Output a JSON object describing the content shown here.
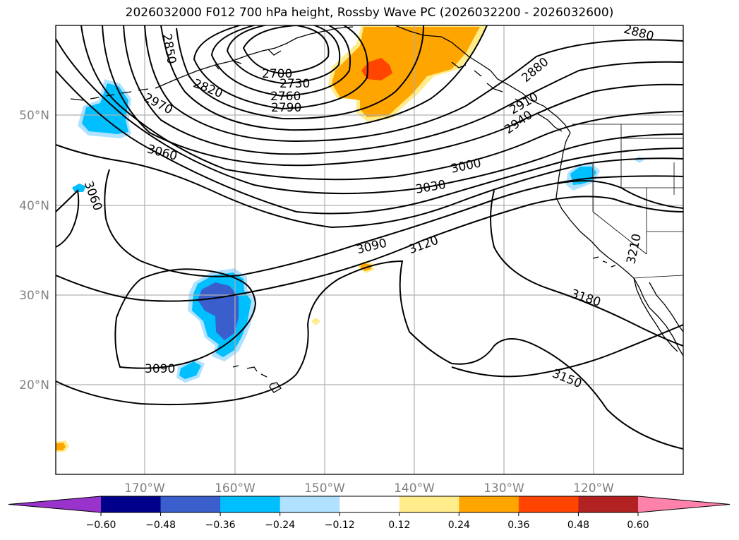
{
  "title": "2026032000 F012 700 hPa height, Rossby Wave PC (2026032200 - 2026032600)",
  "axes": {
    "lat_labels": [
      "50°N",
      "40°N",
      "30°N",
      "20°N"
    ],
    "lon_labels": [
      "170°W",
      "160°W",
      "150°W",
      "140°W",
      "130°W",
      "120°W"
    ]
  },
  "contour_labels": [
    "2850",
    "2700",
    "2730",
    "2760",
    "2790",
    "2820",
    "2970",
    "3060",
    "3060",
    "2880",
    "2880",
    "2910",
    "2940",
    "3000",
    "3030",
    "3090",
    "3120",
    "3090",
    "3210",
    "3180",
    "3150"
  ],
  "colorbar": {
    "ticks": [
      "−0.60",
      "−0.48",
      "−0.36",
      "−0.24",
      "−0.12",
      "0.12",
      "0.24",
      "0.36",
      "0.48",
      "0.60"
    ],
    "colors": [
      "#9933cc",
      "#00008b",
      "#3a5fcd",
      "#00bfff",
      "#b0e2ff",
      "#ffffff",
      "#ffec8b",
      "#ffa500",
      "#ff4500",
      "#b22222",
      "#ff82ab"
    ]
  }
}
